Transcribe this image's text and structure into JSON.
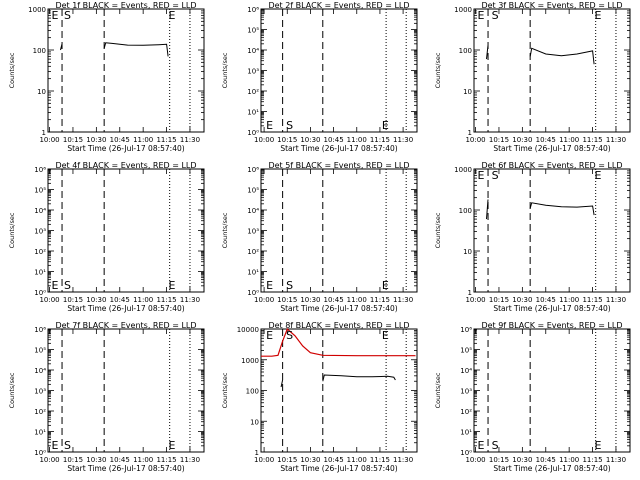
{
  "chart_data": [
    {
      "type": "line",
      "title": "Det 1f BLACK = Events, RED = LLD",
      "xlabel": "Start Time (26-Jul-17 08:57:40)",
      "ylabel": "Counts/sec",
      "y_scale": "log",
      "ylim": [
        1,
        1000
      ],
      "y_ticks": [
        "1",
        "10",
        "100",
        "1000"
      ],
      "x_ticks": [
        "10:00",
        "10:15",
        "10:30",
        "10:45",
        "11:00",
        "11:15",
        "11:30"
      ],
      "xlim": [
        "09:59",
        "11:39"
      ],
      "markers": [
        {
          "label": "E",
          "x": "10:00"
        },
        {
          "label": "S",
          "x": "10:08"
        },
        {
          "label": "E",
          "x": "11:15"
        }
      ],
      "dashed_lines": [
        "10:08",
        "10:35"
      ],
      "dotted_lines": [
        "11:17",
        "11:30"
      ],
      "series": [
        {
          "color": "#000000",
          "x": [
            "10:07",
            "10:08"
          ],
          "y": [
            100,
            140
          ]
        },
        {
          "color": "#000000",
          "x": [
            "10:35",
            "10:36",
            "10:40",
            "10:50",
            "11:00",
            "11:10",
            "11:15",
            "11:16"
          ],
          "y": [
            110,
            150,
            145,
            132,
            130,
            135,
            138,
            70
          ]
        }
      ]
    },
    {
      "type": "line",
      "title": "Det 2f BLACK = Events, RED = LLD",
      "xlabel": "Start Time (26-Jul-17 08:57:40)",
      "ylabel": "Counts/sec",
      "y_scale": "log",
      "ylim": [
        1,
        1000000
      ],
      "y_ticks": [
        "10⁰",
        "10¹",
        "10²",
        "10³",
        "10⁴",
        "10⁵",
        "10⁶"
      ],
      "x_ticks": [
        "10:00",
        "10:15",
        "10:30",
        "10:45",
        "11:00",
        "11:15",
        "11:30"
      ],
      "xlim": [
        "09:58",
        "11:39"
      ],
      "markers": [
        {
          "label": "E",
          "x": "10:00"
        },
        {
          "label": "S",
          "x": "10:13"
        },
        {
          "label": "E",
          "x": "11:15"
        }
      ],
      "dashed_lines": [
        "10:12",
        "10:38"
      ],
      "dotted_lines": [
        "11:19",
        "11:32"
      ],
      "series": []
    },
    {
      "type": "line",
      "title": "Det 3f BLACK = Events, RED = LLD",
      "xlabel": "Start Time (26-Jul-17 08:57:40)",
      "ylabel": "Counts/sec",
      "y_scale": "log",
      "ylim": [
        1,
        1000
      ],
      "y_ticks": [
        "1",
        "10",
        "100",
        "1000"
      ],
      "x_ticks": [
        "10:00",
        "10:15",
        "10:30",
        "10:45",
        "11:00",
        "11:15",
        "11:30"
      ],
      "xlim": [
        "09:59",
        "11:39"
      ],
      "markers": [
        {
          "label": "E",
          "x": "10:00"
        },
        {
          "label": "S",
          "x": "10:09"
        },
        {
          "label": "E",
          "x": "11:15"
        }
      ],
      "dashed_lines": [
        "10:08",
        "10:35"
      ],
      "dotted_lines": [
        "11:17",
        "11:30"
      ],
      "series": [
        {
          "color": "#000000",
          "x": [
            "10:07",
            "10:08"
          ],
          "y": [
            60,
            130
          ]
        },
        {
          "color": "#000000",
          "x": [
            "10:35",
            "10:36",
            "10:45",
            "10:55",
            "11:05",
            "11:15",
            "11:16"
          ],
          "y": [
            70,
            110,
            80,
            72,
            80,
            95,
            45
          ]
        }
      ]
    },
    {
      "type": "line",
      "title": "Det 4f BLACK = Events, RED = LLD",
      "xlabel": "Start Time (26-Jul-17 08:57:40)",
      "ylabel": "Counts/sec",
      "y_scale": "log",
      "ylim": [
        1,
        1000000
      ],
      "y_ticks": [
        "10⁰",
        "10¹",
        "10²",
        "10³",
        "10⁴",
        "10⁵",
        "10⁶"
      ],
      "x_ticks": [
        "10:00",
        "10:15",
        "10:30",
        "10:45",
        "11:00",
        "11:15",
        "11:30"
      ],
      "xlim": [
        "09:59",
        "11:39"
      ],
      "markers": [
        {
          "label": "E",
          "x": "10:00"
        },
        {
          "label": "S",
          "x": "10:08"
        },
        {
          "label": "E",
          "x": "11:15"
        }
      ],
      "dashed_lines": [
        "10:08",
        "10:35"
      ],
      "dotted_lines": [
        "11:17",
        "11:30"
      ],
      "series": []
    },
    {
      "type": "line",
      "title": "Det 5f BLACK = Events, RED = LLD",
      "xlabel": "Start Time (26-Jul-17 08:57:40)",
      "ylabel": "Counts/sec",
      "y_scale": "log",
      "ylim": [
        1,
        1000000
      ],
      "y_ticks": [
        "10⁰",
        "10¹",
        "10²",
        "10³",
        "10⁴",
        "10⁵",
        "10⁶"
      ],
      "x_ticks": [
        "10:00",
        "10:15",
        "10:30",
        "10:45",
        "11:00",
        "11:15",
        "11:30"
      ],
      "xlim": [
        "09:58",
        "11:39"
      ],
      "markers": [
        {
          "label": "E",
          "x": "10:00"
        },
        {
          "label": "S",
          "x": "10:13"
        },
        {
          "label": "E",
          "x": "11:15"
        }
      ],
      "dashed_lines": [
        "10:12",
        "10:38"
      ],
      "dotted_lines": [
        "11:19",
        "11:32"
      ],
      "series": []
    },
    {
      "type": "line",
      "title": "Det 6f BLACK = Events, RED = LLD",
      "xlabel": "Start Time (26-Jul-17 08:57:40)",
      "ylabel": "Counts/sec",
      "y_scale": "log",
      "ylim": [
        1,
        1000
      ],
      "y_ticks": [
        "1",
        "10",
        "100",
        "1000"
      ],
      "x_ticks": [
        "10:00",
        "10:15",
        "10:30",
        "10:45",
        "11:00",
        "11:15",
        "11:30"
      ],
      "xlim": [
        "09:59",
        "11:39"
      ],
      "markers": [
        {
          "label": "E",
          "x": "10:00"
        },
        {
          "label": "S",
          "x": "10:09"
        },
        {
          "label": "E",
          "x": "11:15"
        }
      ],
      "dashed_lines": [
        "10:08",
        "10:35"
      ],
      "dotted_lines": [
        "11:17",
        "11:30"
      ],
      "series": [
        {
          "color": "#000000",
          "x": [
            "10:07",
            "10:08"
          ],
          "y": [
            60,
            180
          ]
        },
        {
          "color": "#000000",
          "x": [
            "10:35",
            "10:36",
            "10:45",
            "10:55",
            "11:05",
            "11:15",
            "11:16"
          ],
          "y": [
            110,
            150,
            130,
            120,
            118,
            125,
            75
          ]
        }
      ]
    },
    {
      "type": "line",
      "title": "Det 7f BLACK = Events, RED = LLD",
      "xlabel": "Start Time (26-Jul-17 08:57:40)",
      "ylabel": "Counts/sec",
      "y_scale": "log",
      "ylim": [
        1,
        1000000
      ],
      "y_ticks": [
        "10⁰",
        "10¹",
        "10²",
        "10³",
        "10⁴",
        "10⁵",
        "10⁶"
      ],
      "x_ticks": [
        "10:00",
        "10:15",
        "10:30",
        "10:45",
        "11:00",
        "11:15",
        "11:30"
      ],
      "xlim": [
        "09:59",
        "11:39"
      ],
      "markers": [
        {
          "label": "E",
          "x": "10:00"
        },
        {
          "label": "S",
          "x": "10:08"
        },
        {
          "label": "E",
          "x": "11:15"
        }
      ],
      "dashed_lines": [
        "10:08",
        "10:35"
      ],
      "dotted_lines": [
        "11:17",
        "11:30"
      ],
      "series": []
    },
    {
      "type": "line",
      "title": "Det 8f BLACK = Events, RED = LLD",
      "xlabel": "Start Time (26-Jul-17 08:57:40)",
      "ylabel": "Counts/sec",
      "y_scale": "log",
      "ylim": [
        1,
        10000
      ],
      "y_ticks": [
        "1",
        "10",
        "100",
        "1000",
        "10000"
      ],
      "x_ticks": [
        "10:00",
        "10:15",
        "10:30",
        "10:45",
        "11:00",
        "11:15",
        "11:30"
      ],
      "xlim": [
        "09:58",
        "11:39"
      ],
      "markers": [
        {
          "label": "E",
          "x": "10:00"
        },
        {
          "label": "S",
          "x": "10:13"
        },
        {
          "label": "E",
          "x": "11:15"
        }
      ],
      "dashed_lines": [
        "10:12",
        "10:38"
      ],
      "dotted_lines": [
        "11:19",
        "11:32"
      ],
      "series": [
        {
          "color": "#d00000",
          "x": [
            "09:58",
            "10:05",
            "10:09",
            "10:12",
            "10:15",
            "10:20",
            "10:25",
            "10:30",
            "10:38",
            "11:00",
            "11:20",
            "11:38"
          ],
          "y": [
            1300,
            1300,
            1400,
            4000,
            15000,
            6000,
            2800,
            1700,
            1400,
            1350,
            1350,
            1350
          ]
        },
        {
          "color": "#000000",
          "x": [
            "10:11",
            "10:12"
          ],
          "y": [
            130,
            220
          ]
        },
        {
          "color": "#000000",
          "x": [
            "10:38",
            "10:39",
            "10:50",
            "11:00",
            "11:10",
            "11:20",
            "11:24",
            "11:25"
          ],
          "y": [
            200,
            320,
            300,
            280,
            280,
            290,
            270,
            220
          ]
        }
      ]
    },
    {
      "type": "line",
      "title": "Det 9f BLACK = Events, RED = LLD",
      "xlabel": "Start Time (26-Jul-17 08:57:40)",
      "ylabel": "Counts/sec",
      "y_scale": "log",
      "ylim": [
        1,
        1000000
      ],
      "y_ticks": [
        "10⁰",
        "10¹",
        "10²",
        "10³",
        "10⁴",
        "10⁵",
        "10⁶"
      ],
      "x_ticks": [
        "10:00",
        "10:15",
        "10:30",
        "10:45",
        "11:00",
        "11:15",
        "11:30"
      ],
      "xlim": [
        "09:59",
        "11:39"
      ],
      "markers": [
        {
          "label": "E",
          "x": "10:00"
        },
        {
          "label": "S",
          "x": "10:09"
        },
        {
          "label": "E",
          "x": "11:15"
        }
      ],
      "dashed_lines": [
        "10:08",
        "10:35"
      ],
      "dotted_lines": [
        "11:17",
        "11:30"
      ],
      "series": []
    }
  ]
}
